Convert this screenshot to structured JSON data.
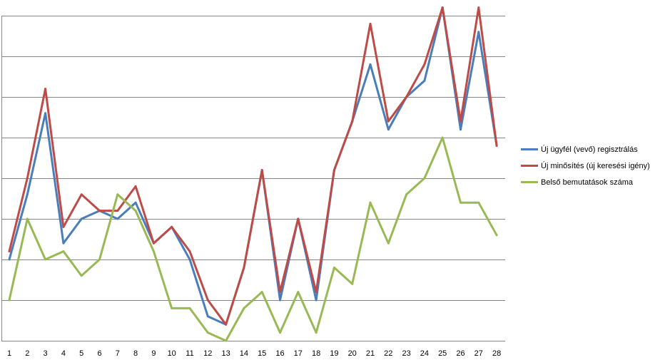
{
  "chart_data": {
    "type": "line",
    "title": "",
    "xlabel": "",
    "ylabel": "",
    "categories": [
      "1",
      "2",
      "3",
      "4",
      "5",
      "6",
      "7",
      "8",
      "9",
      "10",
      "11",
      "12",
      "13",
      "14",
      "15",
      "16",
      "17",
      "18",
      "19",
      "20",
      "21",
      "22",
      "23",
      "24",
      "25",
      "26",
      "27",
      "28"
    ],
    "ylim": [
      0,
      8
    ],
    "grid": true,
    "y_tick_labels_visible": false,
    "legend_position": "right",
    "series": [
      {
        "name": "Új ügyfél (vevő) regisztrálás",
        "color": "#4a7ebb",
        "values": [
          2.0,
          3.6,
          5.6,
          2.4,
          3.0,
          3.2,
          3.0,
          3.4,
          2.4,
          2.8,
          2.0,
          0.6,
          0.4,
          1.8,
          4.2,
          1.0,
          3.0,
          1.0,
          4.2,
          5.4,
          6.8,
          5.2,
          6.0,
          6.4,
          8.2,
          5.2,
          7.6,
          4.8
        ]
      },
      {
        "name": "Új minősítés (új keresési igény)",
        "color": "#be4b48",
        "values": [
          2.2,
          4.0,
          6.2,
          2.8,
          3.6,
          3.2,
          3.2,
          3.8,
          2.4,
          2.8,
          2.2,
          1.0,
          0.4,
          1.8,
          4.2,
          1.2,
          3.0,
          1.2,
          4.2,
          5.4,
          7.8,
          5.4,
          6.0,
          6.8,
          8.2,
          5.4,
          8.2,
          4.8
        ]
      },
      {
        "name": "Belső bemutatások száma",
        "color": "#98b954",
        "values": [
          1.0,
          3.0,
          2.0,
          2.2,
          1.6,
          2.0,
          3.6,
          3.2,
          2.2,
          0.8,
          0.8,
          0.2,
          0.0,
          0.8,
          1.2,
          0.2,
          1.2,
          0.2,
          1.8,
          1.4,
          3.4,
          2.4,
          3.6,
          4.0,
          5.0,
          3.4,
          3.4,
          2.6
        ]
      }
    ]
  }
}
